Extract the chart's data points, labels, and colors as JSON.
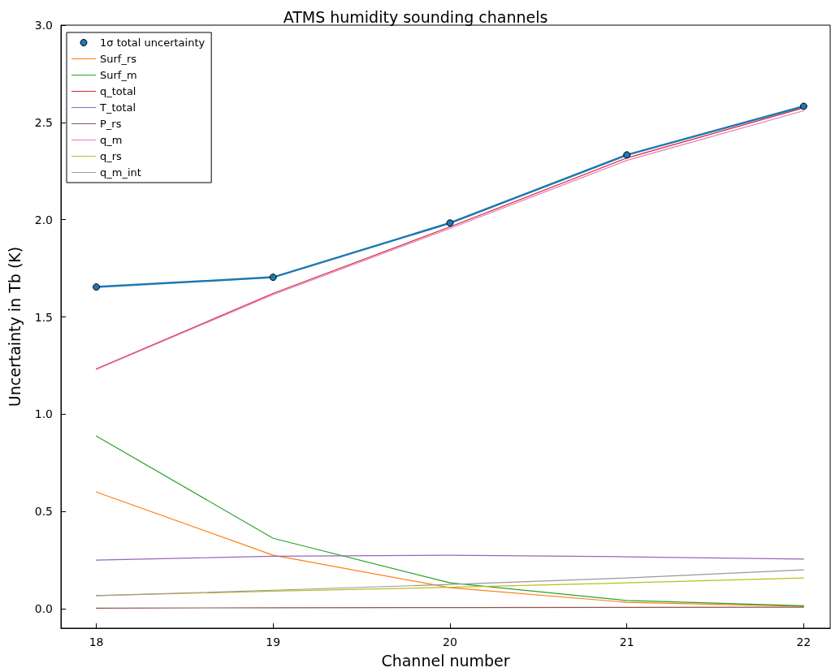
{
  "chart_data": {
    "type": "line",
    "title": "ATMS humidity sounding channels",
    "xlabel": "Channel number",
    "ylabel": "Uncertainty in Tb (K)",
    "x": [
      18,
      19,
      20,
      21,
      22
    ],
    "xlim": [
      17.8,
      22.15
    ],
    "xticks": [
      18,
      19,
      20,
      21,
      22
    ],
    "ylim": [
      -0.1,
      3.0
    ],
    "yticks": [
      {
        "value": 0,
        "label": "0.0"
      },
      {
        "value": 0.5,
        "label": "0.5"
      },
      {
        "value": 1,
        "label": "1.0"
      },
      {
        "value": 1.5,
        "label": "1.5"
      },
      {
        "value": 2,
        "label": "2.0"
      },
      {
        "value": 2.5,
        "label": "2.5"
      },
      {
        "value": 3,
        "label": "3.0"
      }
    ],
    "grid": false,
    "legend": "top left",
    "marker": "none",
    "line_style": "solid",
    "series": [
      {
        "name": "1σ total uncertainty",
        "color": "#1f77b4",
        "marker": "circle",
        "values": [
          1.654,
          1.704,
          1.983,
          2.333,
          2.583
        ]
      },
      {
        "name": "Surf_rs",
        "color": "#ff7f0e",
        "values": [
          0.6,
          0.275,
          0.108,
          0.033,
          0.012
        ]
      },
      {
        "name": "Surf_m",
        "color": "#2ca02c",
        "values": [
          0.888,
          0.362,
          0.133,
          0.042,
          0.015
        ]
      },
      {
        "name": "q_total",
        "color": "#d62728",
        "values": [
          1.233,
          1.621,
          1.963,
          2.317,
          2.575
        ]
      },
      {
        "name": "T_total",
        "color": "#9467bd",
        "values": [
          0.25,
          0.27,
          0.275,
          0.267,
          0.255
        ]
      },
      {
        "name": "P_rs",
        "color": "#8c564b",
        "values": [
          0.003,
          0.005,
          0.006,
          0.007,
          0.008
        ]
      },
      {
        "name": "q_m",
        "color": "#e377c2",
        "values": [
          1.23,
          1.615,
          1.955,
          2.305,
          2.56
        ]
      },
      {
        "name": "q_rs",
        "color": "#bcbd22",
        "values": [
          0.067,
          0.09,
          0.11,
          0.133,
          0.158
        ]
      },
      {
        "name": "q_m_int",
        "color": "#999999",
        "values": [
          0.067,
          0.095,
          0.125,
          0.158,
          0.2
        ]
      }
    ]
  }
}
